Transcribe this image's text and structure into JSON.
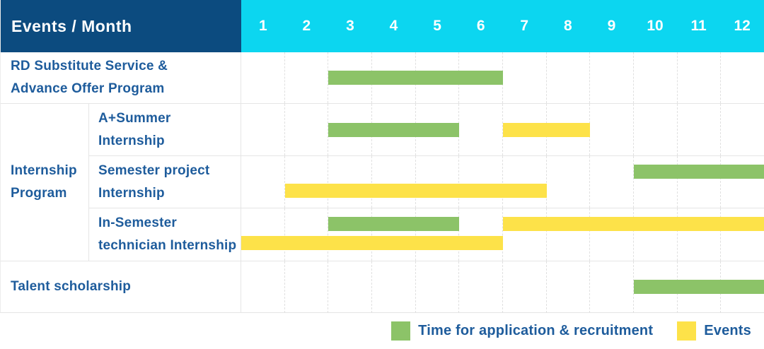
{
  "header": {
    "label": "Events / Month",
    "months": [
      "1",
      "2",
      "3",
      "4",
      "5",
      "6",
      "7",
      "8",
      "9",
      "10",
      "11",
      "12"
    ]
  },
  "colors": {
    "header_bg": "#0c4b7f",
    "month_header_bg": "#0cd6f0",
    "recruitment_green": "#8cc368",
    "event_yellow": "#fde249",
    "label_text": "#1e5c9c",
    "header_text": "#ffffff",
    "grid_line": "#e5e5e5"
  },
  "legend": {
    "items": [
      {
        "kind": "recruitment",
        "label": "Time for application & recruitment"
      },
      {
        "kind": "event",
        "label": "Events"
      }
    ]
  },
  "chart_data": {
    "type": "bar",
    "subtype": "gantt",
    "title": "Events / Month",
    "x_unit": "month",
    "x_range": [
      1,
      12
    ],
    "categories": [
      "1",
      "2",
      "3",
      "4",
      "5",
      "6",
      "7",
      "8",
      "9",
      "10",
      "11",
      "12"
    ],
    "bar_kinds": {
      "recruitment": "Time for application & recruitment",
      "event": "Events"
    },
    "rows": [
      {
        "label": "RD Substitute Service &\nAdvance Offer Program",
        "group": null,
        "lanes": 1,
        "bars": [
          {
            "kind": "recruitment",
            "start_month": 3,
            "end_month": 6,
            "lane": 0
          }
        ]
      },
      {
        "label": "A+Summer\nInternship",
        "group": "Internship\nProgram",
        "lanes": 1,
        "bars": [
          {
            "kind": "recruitment",
            "start_month": 3,
            "end_month": 5,
            "lane": 0
          },
          {
            "kind": "event",
            "start_month": 7,
            "end_month": 8,
            "lane": 0
          }
        ]
      },
      {
        "label": "Semester project\nInternship",
        "group": "Internship\nProgram",
        "lanes": 2,
        "bars": [
          {
            "kind": "recruitment",
            "start_month": 10,
            "end_month": 12,
            "lane": 0
          },
          {
            "kind": "event",
            "start_month": 2,
            "end_month": 7,
            "lane": 1
          }
        ]
      },
      {
        "label": "In-Semester\ntechnician Internship",
        "group": "Internship\nProgram",
        "lanes": 2,
        "bars": [
          {
            "kind": "recruitment",
            "start_month": 3,
            "end_month": 5,
            "lane": 0
          },
          {
            "kind": "event",
            "start_month": 7,
            "end_month": 12,
            "lane": 0
          },
          {
            "kind": "event",
            "start_month": 1,
            "end_month": 6,
            "lane": 1
          }
        ]
      },
      {
        "label": "Talent scholarship",
        "group": null,
        "lanes": 1,
        "bars": [
          {
            "kind": "recruitment",
            "start_month": 10,
            "end_month": 12,
            "lane": 0
          }
        ]
      }
    ]
  }
}
